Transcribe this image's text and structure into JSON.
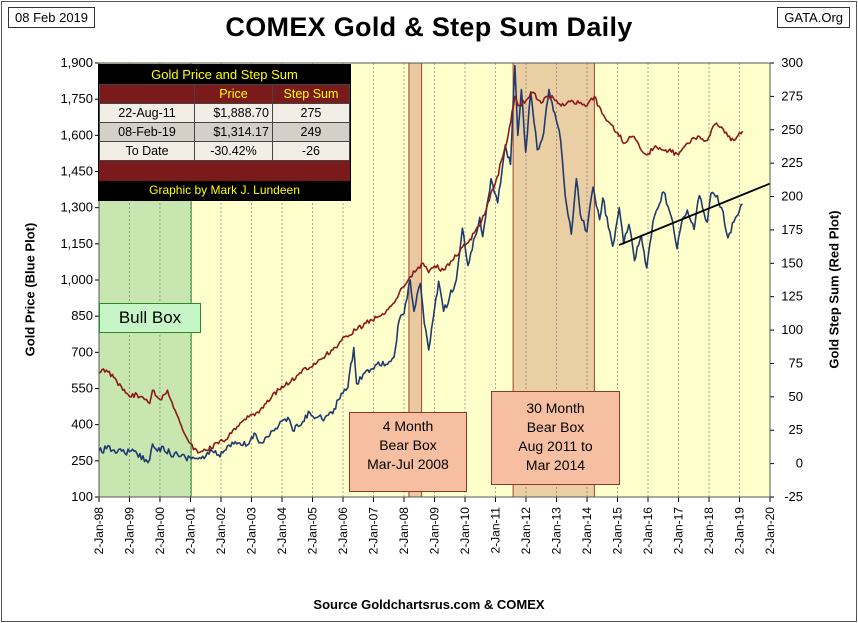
{
  "header": {
    "date": "08 Feb 2019",
    "title": "COMEX Gold & Step Sum Daily",
    "site": "GATA.Org"
  },
  "footer": {
    "source": "Source Goldchartsrus.com & COMEX"
  },
  "stats_table": {
    "title": "Gold Price and Step Sum",
    "columns": [
      "",
      "Price",
      "Step Sum"
    ],
    "rows": [
      {
        "label": "22-Aug-11",
        "price": "$1,888.70",
        "step": "275"
      },
      {
        "label": "08-Feb-19",
        "price": "$1,314.17",
        "step": "249"
      },
      {
        "label": "To Date",
        "price": "-30.42%",
        "step": "-26"
      }
    ],
    "credit": "Graphic by Mark J. Lundeen"
  },
  "boxes": {
    "bull": {
      "label": "Bull Box"
    },
    "bear_2008": {
      "lines": [
        "4 Month",
        "Bear Box",
        "Mar-Jul 2008"
      ]
    },
    "bear_2011": {
      "lines": [
        "30 Month",
        "Bear Box",
        "Aug 2011 to",
        "Mar 2014"
      ]
    }
  },
  "colors": {
    "gold_price": "#1f3a6e",
    "step_sum": "#8b1a1a",
    "plot_bg": "#ffffcc",
    "bull_box": "#c8e6b0",
    "bear_box": "#e8c9a0",
    "trend_line": "#000000"
  },
  "chart_data": {
    "type": "line",
    "x_range": [
      "1998-01-02",
      "2020-01-02"
    ],
    "x_ticks": [
      "2-Jan-98",
      "2-Jan-99",
      "2-Jan-00",
      "2-Jan-01",
      "2-Jan-02",
      "2-Jan-03",
      "2-Jan-04",
      "2-Jan-05",
      "2-Jan-06",
      "2-Jan-07",
      "2-Jan-08",
      "2-Jan-09",
      "2-Jan-10",
      "2-Jan-11",
      "2-Jan-12",
      "2-Jan-13",
      "2-Jan-14",
      "2-Jan-15",
      "2-Jan-16",
      "2-Jan-17",
      "2-Jan-18",
      "2-Jan-19",
      "2-Jan-20"
    ],
    "y_left": {
      "label": "Gold Price   (Blue Plot)",
      "range": [
        100,
        1900
      ],
      "ticks": [
        100,
        250,
        400,
        550,
        700,
        850,
        1000,
        1150,
        1300,
        1450,
        1600,
        1750,
        1900
      ]
    },
    "y_right": {
      "label": "Gold Step Sum    (Red Plot)",
      "range": [
        -25,
        300
      ],
      "ticks": [
        -25,
        0,
        25,
        50,
        75,
        100,
        125,
        150,
        175,
        200,
        225,
        250,
        275,
        300
      ]
    },
    "grid": "vertical",
    "series": [
      {
        "axis": "left",
        "points": [
          [
            "1998-01-02",
            290
          ],
          [
            "1998-04-01",
            300
          ],
          [
            "1998-07-01",
            295
          ],
          [
            "1998-10-01",
            290
          ],
          [
            "1999-01-04",
            288
          ],
          [
            "1999-04-01",
            280
          ],
          [
            "1999-07-19",
            255
          ],
          [
            "1999-09-01",
            255
          ],
          [
            "1999-10-05",
            320
          ],
          [
            "1999-12-01",
            290
          ],
          [
            "2000-02-10",
            310
          ],
          [
            "2000-05-01",
            280
          ],
          [
            "2000-08-01",
            275
          ],
          [
            "2000-11-01",
            265
          ],
          [
            "2001-02-01",
            265
          ],
          [
            "2001-04-02",
            258
          ],
          [
            "2001-07-02",
            268
          ],
          [
            "2001-09-20",
            290
          ],
          [
            "2001-12-03",
            275
          ],
          [
            "2002-03-01",
            295
          ],
          [
            "2002-06-03",
            320
          ],
          [
            "2002-09-02",
            315
          ],
          [
            "2002-12-02",
            320
          ],
          [
            "2003-02-03",
            365
          ],
          [
            "2003-04-01",
            325
          ],
          [
            "2003-07-01",
            350
          ],
          [
            "2003-10-01",
            375
          ],
          [
            "2003-12-31",
            415
          ],
          [
            "2004-04-01",
            420
          ],
          [
            "2004-05-10",
            375
          ],
          [
            "2004-08-02",
            395
          ],
          [
            "2004-12-01",
            450
          ],
          [
            "2005-03-01",
            430
          ],
          [
            "2005-06-01",
            430
          ],
          [
            "2005-09-01",
            445
          ],
          [
            "2005-12-12",
            530
          ],
          [
            "2006-03-01",
            555
          ],
          [
            "2006-05-11",
            720
          ],
          [
            "2006-06-14",
            570
          ],
          [
            "2006-09-01",
            610
          ],
          [
            "2006-12-01",
            630
          ],
          [
            "2007-03-01",
            660
          ],
          [
            "2007-06-01",
            650
          ],
          [
            "2007-09-04",
            680
          ],
          [
            "2007-11-07",
            835
          ],
          [
            "2008-01-02",
            860
          ],
          [
            "2008-03-17",
            1000
          ],
          [
            "2008-05-01",
            870
          ],
          [
            "2008-07-15",
            985
          ],
          [
            "2008-09-01",
            820
          ],
          [
            "2008-10-24",
            710
          ],
          [
            "2009-01-02",
            880
          ],
          [
            "2009-02-20",
            995
          ],
          [
            "2009-04-20",
            870
          ],
          [
            "2009-07-01",
            930
          ],
          [
            "2009-09-20",
            1000
          ],
          [
            "2009-12-02",
            1215
          ],
          [
            "2010-02-05",
            1060
          ],
          [
            "2010-05-03",
            1180
          ],
          [
            "2010-06-28",
            1260
          ],
          [
            "2010-08-02",
            1180
          ],
          [
            "2010-11-09",
            1420
          ],
          [
            "2011-01-28",
            1320
          ],
          [
            "2011-04-29",
            1560
          ],
          [
            "2011-07-01",
            1480
          ],
          [
            "2011-08-22",
            1889
          ],
          [
            "2011-09-26",
            1600
          ],
          [
            "2011-11-08",
            1790
          ],
          [
            "2011-12-29",
            1530
          ],
          [
            "2012-02-28",
            1780
          ],
          [
            "2012-05-16",
            1540
          ],
          [
            "2012-08-01",
            1610
          ],
          [
            "2012-10-04",
            1790
          ],
          [
            "2012-12-31",
            1660
          ],
          [
            "2013-02-20",
            1580
          ],
          [
            "2013-04-16",
            1350
          ],
          [
            "2013-06-28",
            1190
          ],
          [
            "2013-08-28",
            1420
          ],
          [
            "2013-10-15",
            1270
          ],
          [
            "2013-12-31",
            1200
          ],
          [
            "2014-03-14",
            1385
          ],
          [
            "2014-06-02",
            1250
          ],
          [
            "2014-07-10",
            1340
          ],
          [
            "2014-11-05",
            1140
          ],
          [
            "2015-01-22",
            1300
          ],
          [
            "2015-03-17",
            1150
          ],
          [
            "2015-05-18",
            1230
          ],
          [
            "2015-07-24",
            1080
          ],
          [
            "2015-10-14",
            1185
          ],
          [
            "2015-12-17",
            1050
          ],
          [
            "2016-03-01",
            1240
          ],
          [
            "2016-05-02",
            1300
          ],
          [
            "2016-07-06",
            1365
          ],
          [
            "2016-10-05",
            1265
          ],
          [
            "2016-12-15",
            1130
          ],
          [
            "2017-02-27",
            1260
          ],
          [
            "2017-04-17",
            1290
          ],
          [
            "2017-07-07",
            1210
          ],
          [
            "2017-09-08",
            1350
          ],
          [
            "2017-12-12",
            1240
          ],
          [
            "2018-01-25",
            1360
          ],
          [
            "2018-04-11",
            1350
          ],
          [
            "2018-06-01",
            1300
          ],
          [
            "2018-08-16",
            1175
          ],
          [
            "2018-10-26",
            1240
          ],
          [
            "2019-01-02",
            1290
          ],
          [
            "2019-02-08",
            1314
          ]
        ]
      },
      {
        "axis": "right",
        "points": [
          [
            "1998-01-02",
            68
          ],
          [
            "1998-04-01",
            70
          ],
          [
            "1998-08-01",
            62
          ],
          [
            "1998-10-15",
            55
          ],
          [
            "1999-01-04",
            50
          ],
          [
            "1999-04-01",
            52
          ],
          [
            "1999-07-01",
            48
          ],
          [
            "1999-09-01",
            45
          ],
          [
            "1999-10-05",
            55
          ],
          [
            "2000-01-03",
            48
          ],
          [
            "2000-04-01",
            55
          ],
          [
            "2000-07-01",
            40
          ],
          [
            "2000-10-01",
            25
          ],
          [
            "2001-01-02",
            15
          ],
          [
            "2001-04-02",
            8
          ],
          [
            "2001-07-02",
            10
          ],
          [
            "2001-12-03",
            15
          ],
          [
            "2002-04-01",
            20
          ],
          [
            "2002-08-01",
            28
          ],
          [
            "2002-12-02",
            35
          ],
          [
            "2003-04-01",
            38
          ],
          [
            "2003-09-01",
            50
          ],
          [
            "2003-12-31",
            58
          ],
          [
            "2004-04-01",
            60
          ],
          [
            "2004-08-02",
            68
          ],
          [
            "2004-12-01",
            72
          ],
          [
            "2005-04-01",
            78
          ],
          [
            "2005-09-01",
            85
          ],
          [
            "2005-12-12",
            92
          ],
          [
            "2006-03-01",
            95
          ],
          [
            "2006-06-01",
            100
          ],
          [
            "2006-10-01",
            105
          ],
          [
            "2007-03-01",
            110
          ],
          [
            "2007-08-01",
            118
          ],
          [
            "2007-11-07",
            128
          ],
          [
            "2008-03-17",
            140
          ],
          [
            "2008-06-01",
            145
          ],
          [
            "2008-08-20",
            150
          ],
          [
            "2008-10-24",
            143
          ],
          [
            "2009-01-02",
            148
          ],
          [
            "2009-04-20",
            145
          ],
          [
            "2009-08-01",
            152
          ],
          [
            "2009-12-02",
            162
          ],
          [
            "2010-03-01",
            168
          ],
          [
            "2010-06-28",
            178
          ],
          [
            "2010-10-01",
            195
          ],
          [
            "2010-12-31",
            210
          ],
          [
            "2011-04-01",
            230
          ],
          [
            "2011-06-01",
            245
          ],
          [
            "2011-08-22",
            275
          ],
          [
            "2011-10-01",
            268
          ],
          [
            "2012-01-03",
            272
          ],
          [
            "2012-04-02",
            278
          ],
          [
            "2012-07-02",
            270
          ],
          [
            "2012-10-04",
            275
          ],
          [
            "2013-01-02",
            272
          ],
          [
            "2013-04-01",
            268
          ],
          [
            "2013-07-01",
            272
          ],
          [
            "2013-10-01",
            270
          ],
          [
            "2014-01-02",
            268
          ],
          [
            "2014-04-01",
            275
          ],
          [
            "2014-07-01",
            262
          ],
          [
            "2014-10-01",
            255
          ],
          [
            "2015-01-02",
            248
          ],
          [
            "2015-04-01",
            240
          ],
          [
            "2015-07-01",
            245
          ],
          [
            "2015-10-01",
            236
          ],
          [
            "2016-01-04",
            232
          ],
          [
            "2016-04-01",
            238
          ],
          [
            "2016-08-01",
            235
          ],
          [
            "2016-12-15",
            232
          ],
          [
            "2017-04-17",
            240
          ],
          [
            "2017-09-08",
            245
          ],
          [
            "2017-12-12",
            242
          ],
          [
            "2018-02-01",
            250
          ],
          [
            "2018-04-01",
            255
          ],
          [
            "2018-06-01",
            252
          ],
          [
            "2018-08-16",
            245
          ],
          [
            "2018-10-26",
            242
          ],
          [
            "2019-01-02",
            248
          ],
          [
            "2019-02-08",
            249
          ]
        ]
      }
    ],
    "trend_line": [
      [
        "2015-01-20",
        1145
      ],
      [
        "2020-01-02",
        1400
      ]
    ]
  }
}
